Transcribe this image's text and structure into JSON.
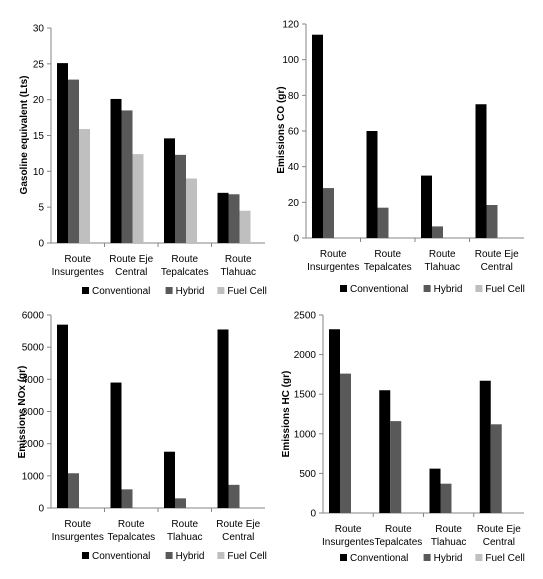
{
  "colors": {
    "Conventional": "#000000",
    "Hybrid": "#595959",
    "Fuel Cell": "#bfbfbf",
    "axis": "#868686"
  },
  "chart_data": [
    {
      "type": "bar",
      "ylabel": "Gasoline equivalent (Lts)",
      "ylim": [
        0,
        30
      ],
      "yticks": [
        0,
        5,
        10,
        15,
        20,
        25,
        30
      ],
      "categories": [
        [
          "Route",
          "Insurgentes"
        ],
        [
          "Route Eje",
          "Central"
        ],
        [
          "Route",
          "Tepalcates"
        ],
        [
          "Route",
          "Tlahuac"
        ]
      ],
      "series": [
        {
          "name": "Conventional",
          "values": [
            25.1,
            20.1,
            14.6,
            7.0
          ]
        },
        {
          "name": "Hybrid",
          "values": [
            22.8,
            18.5,
            12.3,
            6.8
          ]
        },
        {
          "name": "Fuel Cell",
          "values": [
            15.9,
            12.4,
            9.0,
            4.5
          ]
        }
      ],
      "legend_position": "bottom"
    },
    {
      "type": "bar",
      "ylabel": "Emissions CO (gr)",
      "ylim": [
        0,
        120
      ],
      "yticks": [
        0,
        20,
        40,
        60,
        80,
        100,
        120
      ],
      "categories": [
        [
          "Route",
          "Insurgentes"
        ],
        [
          "Route",
          "Tepalcates"
        ],
        [
          "Route",
          "Tlahuac"
        ],
        [
          "Route Eje",
          "Central"
        ]
      ],
      "series": [
        {
          "name": "Conventional",
          "values": [
            114,
            60,
            35,
            75
          ]
        },
        {
          "name": "Hybrid",
          "values": [
            28,
            17,
            6.5,
            18.5
          ]
        },
        {
          "name": "Fuel Cell",
          "values": [
            0,
            0,
            0,
            0
          ]
        }
      ],
      "legend_position": "bottom"
    },
    {
      "type": "bar",
      "ylabel": "Emissions NOx (gr)",
      "ylim": [
        0,
        6000
      ],
      "yticks": [
        0,
        1000,
        2000,
        3000,
        4000,
        5000,
        6000
      ],
      "categories": [
        [
          "Route",
          "Insurgentes"
        ],
        [
          "Route",
          "Tepalcates"
        ],
        [
          "Route",
          "Tlahuac"
        ],
        [
          "Route Eje",
          "Central"
        ]
      ],
      "series": [
        {
          "name": "Conventional",
          "values": [
            5700,
            3900,
            1750,
            5550
          ]
        },
        {
          "name": "Hybrid",
          "values": [
            1080,
            580,
            300,
            720
          ]
        },
        {
          "name": "Fuel Cell",
          "values": [
            0,
            0,
            0,
            0
          ]
        }
      ],
      "legend_position": "bottom"
    },
    {
      "type": "bar",
      "ylabel": "Emissions HC (gr)",
      "ylim": [
        0,
        2500
      ],
      "yticks": [
        0,
        500,
        1000,
        1500,
        2000,
        2500
      ],
      "categories": [
        [
          "Route",
          "Insurgentes"
        ],
        [
          "Route",
          "Tepalcates"
        ],
        [
          "Route",
          "Tlahuac"
        ],
        [
          "Route Eje",
          "Central"
        ]
      ],
      "series": [
        {
          "name": "Conventional",
          "values": [
            2320,
            1550,
            560,
            1670
          ]
        },
        {
          "name": "Hybrid",
          "values": [
            1760,
            1160,
            370,
            1120
          ]
        },
        {
          "name": "Fuel Cell",
          "values": [
            0,
            0,
            0,
            0
          ]
        }
      ],
      "legend_position": "bottom"
    }
  ]
}
